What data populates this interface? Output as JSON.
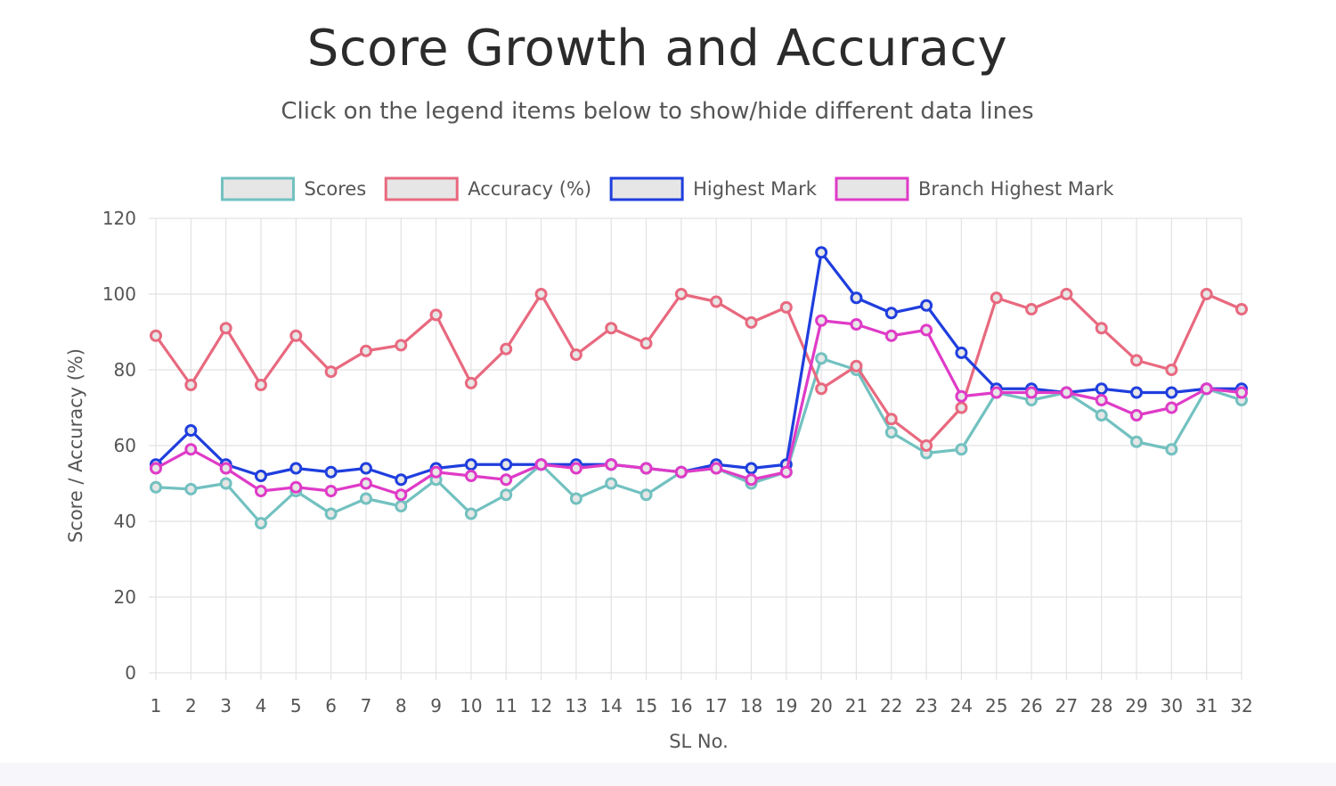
{
  "header": {
    "title": "Score Growth and Accuracy",
    "subtitle": "Click on the legend items below to show/hide different data lines"
  },
  "chart_data": {
    "type": "line",
    "xlabel": "SL No.",
    "ylabel": "Score / Accuracy (%)",
    "ylim": [
      0,
      120
    ],
    "yticks": [
      0,
      20,
      40,
      60,
      80,
      100,
      120
    ],
    "grid": true,
    "legend_position": "top",
    "categories": [
      "1",
      "2",
      "3",
      "4",
      "5",
      "6",
      "7",
      "8",
      "9",
      "10",
      "11",
      "12",
      "13",
      "14",
      "15",
      "16",
      "17",
      "18",
      "19",
      "20",
      "21",
      "22",
      "23",
      "24",
      "25",
      "26",
      "27",
      "28",
      "29",
      "30",
      "31",
      "32"
    ],
    "series": [
      {
        "name": "Scores",
        "color": "#72c1c0",
        "values": [
          49,
          48.5,
          50,
          39.5,
          48,
          42,
          46,
          44,
          51,
          42,
          47,
          55,
          46,
          50,
          47,
          53,
          54,
          50,
          53,
          83,
          80,
          63.5,
          58,
          59,
          74,
          72,
          74,
          68,
          61,
          59,
          75,
          72
        ]
      },
      {
        "name": "Accuracy (%)",
        "color": "#e8697f",
        "values": [
          89,
          76,
          91,
          76,
          89,
          79.5,
          85,
          86.5,
          94.5,
          76.5,
          85.5,
          100,
          84,
          91,
          87,
          100,
          98,
          92.5,
          96.5,
          75,
          81,
          67,
          60,
          70,
          99,
          96,
          100,
          91,
          82.5,
          80,
          100,
          96
        ]
      },
      {
        "name": "Highest Mark",
        "color": "#1f3ede",
        "values": [
          55,
          64,
          55,
          52,
          54,
          53,
          54,
          51,
          54,
          55,
          55,
          55,
          55,
          55,
          54,
          53,
          55,
          54,
          55,
          111,
          99,
          95,
          97,
          84.5,
          75,
          75,
          74,
          75,
          74,
          74,
          75,
          75
        ]
      },
      {
        "name": "Branch Highest Mark",
        "color": "#df3bc7",
        "values": [
          54,
          59,
          54,
          48,
          49,
          48,
          50,
          47,
          53,
          52,
          51,
          55,
          54,
          55,
          54,
          53,
          54,
          51,
          53,
          93,
          92,
          89,
          90.5,
          73,
          74,
          74,
          74,
          72,
          68,
          70,
          75,
          74
        ]
      }
    ]
  }
}
